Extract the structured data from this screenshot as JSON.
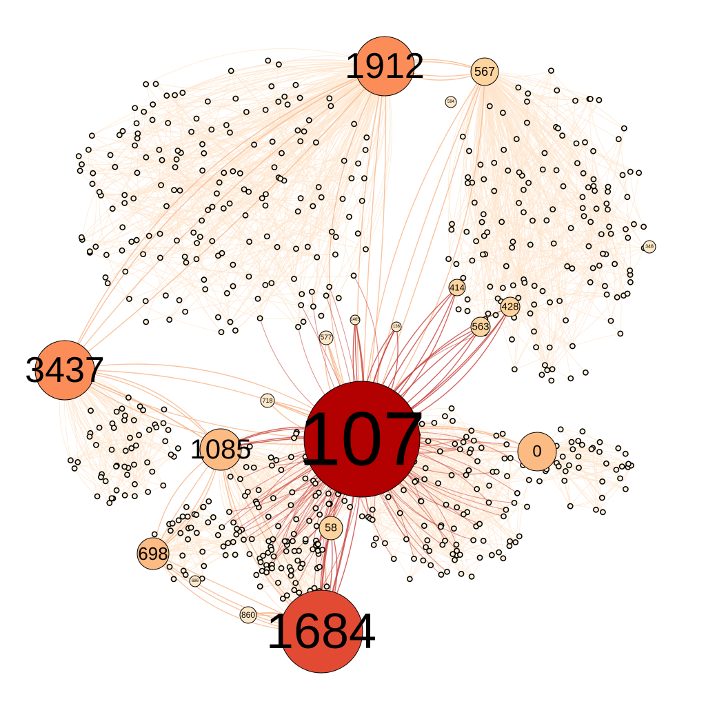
{
  "chart_data": {
    "type": "network",
    "hubs": [
      {
        "label": "107",
        "color": "#b30000",
        "tier": "xl"
      },
      {
        "label": "1684",
        "color": "#e34a33",
        "tier": "l"
      },
      {
        "label": "1912",
        "color": "#fc8d59",
        "tier": "m"
      },
      {
        "label": "3437",
        "color": "#fc8d59",
        "tier": "m"
      },
      {
        "label": "1085",
        "color": "#fdbb84",
        "tier": "s"
      },
      {
        "label": "0",
        "color": "#fdbb84",
        "tier": "s"
      },
      {
        "label": "698",
        "color": "#fdbb84",
        "tier": "s"
      },
      {
        "label": "567",
        "color": "#fdd49e",
        "tier": "xs"
      },
      {
        "label": "58",
        "color": "#fdd49e",
        "tier": "xs"
      },
      {
        "label": "428",
        "color": "#fdd49e",
        "tier": "xs"
      },
      {
        "label": "563",
        "color": "#fdd49e",
        "tier": "xs"
      },
      {
        "label": "414",
        "color": "#fdd49e",
        "tier": "xs"
      },
      {
        "label": "860",
        "color": "#fee8c8",
        "tier": "xxs"
      },
      {
        "label": "348",
        "color": "#fee8c8",
        "tier": "xxs"
      },
      {
        "label": "577",
        "color": "#fee8c8",
        "tier": "xxs"
      },
      {
        "label": "718",
        "color": "#fee8c8",
        "tier": "xxs"
      },
      {
        "label": "594",
        "color": "#fee8c8",
        "tier": "xxs"
      },
      {
        "label": "686",
        "color": "#fee8c8",
        "tier": "xxs"
      },
      {
        "label": "136",
        "color": "#fee8c8",
        "tier": "xxs"
      },
      {
        "label": "1465",
        "color": "#fee8c8",
        "tier": "xxs"
      }
    ],
    "colors": {
      "background": "#ffffff",
      "edge_light": "#fde6ce",
      "edge_mid": "#f8b58a",
      "edge_dark": "#c8403a",
      "small_node": "#fef0d9",
      "node_stroke": "#000000"
    }
  }
}
